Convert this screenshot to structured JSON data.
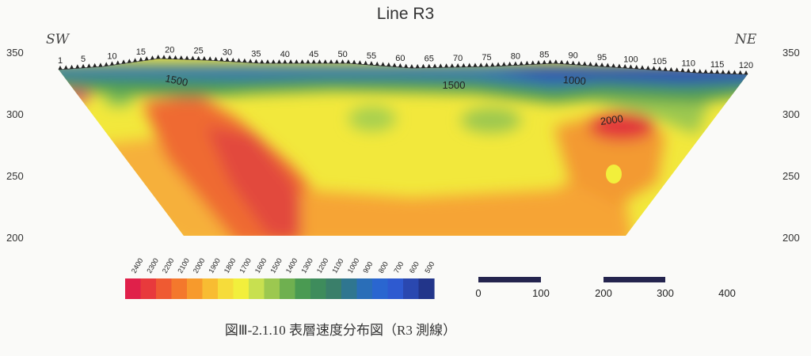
{
  "title": "Line R3",
  "side_labels": {
    "left": "SW",
    "right": "NE"
  },
  "caption": "図Ⅲ-2.1.10 表層速度分布図（R3 測線）",
  "chart_data": {
    "type": "heatmap",
    "title": "Line R3",
    "y_axis": {
      "ticks": [
        350,
        300,
        250,
        200
      ]
    },
    "stations": {
      "labels": [
        1,
        5,
        10,
        15,
        20,
        25,
        30,
        35,
        40,
        45,
        50,
        55,
        60,
        65,
        70,
        75,
        80,
        85,
        90,
        95,
        100,
        105,
        110,
        115,
        120
      ],
      "range": [
        1,
        120
      ]
    },
    "contour_labels": [
      "1500",
      "1500",
      "1000",
      "2000"
    ],
    "colorbar": {
      "labels": [
        2400,
        2300,
        2200,
        2100,
        2000,
        1900,
        1800,
        1700,
        1600,
        1500,
        1400,
        1300,
        1200,
        1100,
        1000,
        900,
        800,
        700,
        600,
        500
      ],
      "colors": [
        "#e0204a",
        "#e83a3c",
        "#ef5a32",
        "#f4782c",
        "#f79a2c",
        "#f8bc32",
        "#f6dc3a",
        "#f2ef3c",
        "#c8e050",
        "#9cc850",
        "#6fb050",
        "#4a9a52",
        "#3e8c5c",
        "#3a7f6a",
        "#2f7690",
        "#2a6eb8",
        "#2a66d0",
        "#2e5ad0",
        "#2a48b0",
        "#22358a"
      ]
    },
    "scale_bar": {
      "labels": [
        "0",
        "100",
        "200",
        "300",
        "400"
      ]
    }
  }
}
